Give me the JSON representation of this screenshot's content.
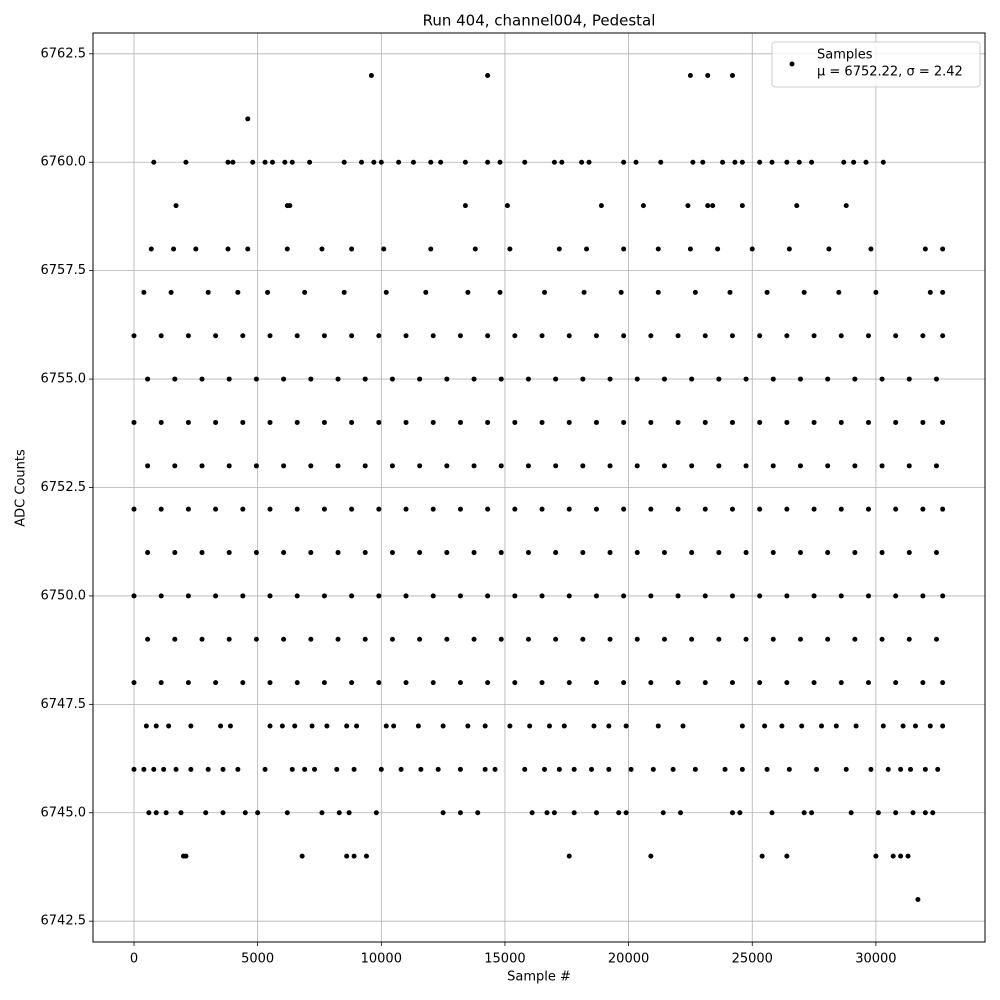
{
  "chart_data": {
    "type": "scatter",
    "title": "Run 404, channel004, Pedestal",
    "x_label": "Sample #",
    "y_label": "ADC Counts",
    "grid": true,
    "legend": "upper right",
    "legend_note": "μ = 6752.22, σ = 2.42",
    "xlim": [
      -1658,
      34412
    ],
    "ylim": [
      6742.02,
      6762.98
    ],
    "xticks": [
      0,
      5000,
      10000,
      15000,
      20000,
      25000,
      30000
    ],
    "yticks": [
      6742.5,
      {
        "value": 6745,
        "label": "6745.0"
      },
      6747.5,
      {
        "value": 6750,
        "label": "6750.0"
      },
      6752.5,
      {
        "value": 6755,
        "label": "6755.0"
      },
      6757.5,
      {
        "value": 6760,
        "label": "6760.0"
      },
      6762.5
    ],
    "series": [
      {
        "name": "Samples",
        "color": "#000000",
        "x": [
          31700,
          2000,
          2100,
          6800,
          8600,
          8900,
          9400,
          17600,
          20900,
          25400,
          26400,
          30000,
          30700,
          31000,
          31300,
          600,
          900,
          1300,
          1900,
          2900,
          3600,
          4500,
          5000,
          6200,
          7600,
          8300,
          8700,
          9800,
          12500,
          13200,
          13900,
          16100,
          16700,
          17000,
          17800,
          18700,
          19600,
          19900,
          21400,
          22100,
          24200,
          24500,
          25800,
          27100,
          27400,
          29000,
          30100,
          30800,
          31500,
          32000,
          32300,
          0,
          400,
          800,
          1200,
          1700,
          2300,
          3000,
          3600,
          4200,
          5300,
          6400,
          6900,
          7300,
          8200,
          8900,
          10000,
          10800,
          11600,
          12300,
          13200,
          14200,
          14600,
          15800,
          16600,
          17200,
          17800,
          18500,
          19200,
          20100,
          21000,
          21800,
          22700,
          23900,
          24600,
          25600,
          26500,
          27600,
          28800,
          29800,
          30500,
          31000,
          31400,
          32000,
          32500,
          500,
          900,
          1400,
          2300,
          3500,
          3900,
          5500,
          6000,
          6500,
          7200,
          7800,
          8600,
          9000,
          10200,
          10500,
          11500,
          12500,
          13500,
          14200,
          15200,
          16000,
          16800,
          17400,
          18600,
          19200,
          19900,
          21200,
          22200,
          24600,
          25500,
          26200,
          27000,
          27800,
          28400,
          29200,
          30300,
          31100,
          31600,
          32200,
          32700,
          0,
          1100,
          2200,
          3300,
          4400,
          5500,
          6600,
          7700,
          8800,
          9900,
          11000,
          12100,
          13200,
          14300,
          15400,
          16500,
          17600,
          18700,
          19800,
          20900,
          22000,
          23100,
          24200,
          25300,
          26400,
          27500,
          28600,
          29700,
          30800,
          31900,
          32700,
          550,
          1650,
          2750,
          3850,
          4950,
          6050,
          7150,
          8250,
          9350,
          10450,
          11550,
          12650,
          13750,
          14850,
          15950,
          17050,
          18150,
          19250,
          20350,
          21450,
          22550,
          23650,
          24750,
          25850,
          26950,
          28050,
          29150,
          30250,
          31350,
          32450,
          0,
          1100,
          2200,
          3300,
          4400,
          5500,
          6600,
          7700,
          8800,
          9900,
          11000,
          12100,
          13200,
          14300,
          15400,
          16500,
          17600,
          18700,
          19800,
          20900,
          22000,
          23100,
          24200,
          25300,
          26400,
          27500,
          28600,
          29700,
          30800,
          31900,
          32700,
          550,
          1650,
          2750,
          3850,
          4950,
          6050,
          7150,
          8250,
          9350,
          10450,
          11550,
          12650,
          13750,
          14850,
          15950,
          17050,
          18150,
          19250,
          20350,
          21450,
          22550,
          23650,
          24750,
          25850,
          26950,
          28050,
          29150,
          30250,
          31350,
          32450,
          0,
          1100,
          2200,
          3300,
          4400,
          5500,
          6600,
          7700,
          8800,
          9900,
          11000,
          12100,
          13200,
          14300,
          15400,
          16500,
          17600,
          18700,
          19800,
          20900,
          22000,
          23100,
          24200,
          25300,
          26400,
          27500,
          28600,
          29700,
          30800,
          31900,
          32700,
          550,
          1650,
          2750,
          3850,
          4950,
          6050,
          7150,
          8250,
          9350,
          10450,
          11550,
          12650,
          13750,
          14850,
          15950,
          17050,
          18150,
          19250,
          20350,
          21450,
          22550,
          23650,
          24750,
          25850,
          26950,
          28050,
          29150,
          30250,
          31350,
          32450,
          0,
          1100,
          2200,
          3300,
          4400,
          5500,
          6600,
          7700,
          8800,
          9900,
          11000,
          12100,
          13200,
          14300,
          15400,
          16500,
          17600,
          18700,
          19800,
          20900,
          22000,
          23100,
          24200,
          25300,
          26400,
          27500,
          28600,
          29700,
          30800,
          31900,
          32700,
          550,
          1650,
          2750,
          3850,
          4950,
          6050,
          7150,
          8250,
          9350,
          10450,
          11550,
          12650,
          13750,
          14850,
          15950,
          17050,
          18150,
          19250,
          20350,
          21450,
          22550,
          23650,
          24750,
          25850,
          26950,
          28050,
          29150,
          30250,
          31350,
          32450,
          0,
          1100,
          2200,
          3300,
          4400,
          5500,
          6600,
          7700,
          8800,
          9900,
          11000,
          12100,
          13200,
          14300,
          15400,
          16500,
          17600,
          18700,
          19800,
          20900,
          22000,
          23100,
          24200,
          25300,
          26400,
          27500,
          28600,
          29700,
          30800,
          31900,
          32700,
          400,
          1500,
          3000,
          4200,
          5400,
          6900,
          8500,
          10200,
          11800,
          13500,
          14800,
          16600,
          18200,
          19700,
          21200,
          22700,
          24100,
          25600,
          27100,
          28500,
          30000,
          32200,
          32700,
          700,
          1600,
          2500,
          3800,
          4600,
          6200,
          7600,
          8800,
          10100,
          12000,
          13800,
          15200,
          17200,
          18300,
          19800,
          21200,
          22500,
          23600,
          25000,
          26500,
          28100,
          29800,
          32000,
          32700,
          1700,
          6200,
          6300,
          13400,
          15100,
          18900,
          20600,
          22400,
          23200,
          23400,
          24600,
          26800,
          28800,
          800,
          2100,
          3800,
          4000,
          4800,
          5300,
          5600,
          6100,
          6400,
          7100,
          8500,
          9200,
          9700,
          10000,
          10700,
          11300,
          12000,
          12400,
          13400,
          14300,
          14800,
          15800,
          17000,
          17300,
          18100,
          18400,
          19800,
          20300,
          21300,
          22600,
          23000,
          23800,
          24300,
          24600,
          25300,
          25800,
          26400,
          26900,
          27400,
          28700,
          29100,
          29600,
          30300,
          4600,
          9600,
          14300,
          22500,
          23200,
          24200
        ],
        "values": [
          6743,
          6744,
          6744,
          6744,
          6744,
          6744,
          6744,
          6744,
          6744,
          6744,
          6744,
          6744,
          6744,
          6744,
          6744,
          6745,
          6745,
          6745,
          6745,
          6745,
          6745,
          6745,
          6745,
          6745,
          6745,
          6745,
          6745,
          6745,
          6745,
          6745,
          6745,
          6745,
          6745,
          6745,
          6745,
          6745,
          6745,
          6745,
          6745,
          6745,
          6745,
          6745,
          6745,
          6745,
          6745,
          6745,
          6745,
          6745,
          6745,
          6745,
          6745,
          6746,
          6746,
          6746,
          6746,
          6746,
          6746,
          6746,
          6746,
          6746,
          6746,
          6746,
          6746,
          6746,
          6746,
          6746,
          6746,
          6746,
          6746,
          6746,
          6746,
          6746,
          6746,
          6746,
          6746,
          6746,
          6746,
          6746,
          6746,
          6746,
          6746,
          6746,
          6746,
          6746,
          6746,
          6746,
          6746,
          6746,
          6746,
          6746,
          6746,
          6746,
          6746,
          6746,
          6746,
          6747,
          6747,
          6747,
          6747,
          6747,
          6747,
          6747,
          6747,
          6747,
          6747,
          6747,
          6747,
          6747,
          6747,
          6747,
          6747,
          6747,
          6747,
          6747,
          6747,
          6747,
          6747,
          6747,
          6747,
          6747,
          6747,
          6747,
          6747,
          6747,
          6747,
          6747,
          6747,
          6747,
          6747,
          6747,
          6747,
          6747,
          6747,
          6747,
          6747,
          6748,
          6748,
          6748,
          6748,
          6748,
          6748,
          6748,
          6748,
          6748,
          6748,
          6748,
          6748,
          6748,
          6748,
          6748,
          6748,
          6748,
          6748,
          6748,
          6748,
          6748,
          6748,
          6748,
          6748,
          6748,
          6748,
          6748,
          6748,
          6748,
          6748,
          6748,
          6749,
          6749,
          6749,
          6749,
          6749,
          6749,
          6749,
          6749,
          6749,
          6749,
          6749,
          6749,
          6749,
          6749,
          6749,
          6749,
          6749,
          6749,
          6749,
          6749,
          6749,
          6749,
          6749,
          6749,
          6749,
          6749,
          6749,
          6749,
          6749,
          6749,
          6750,
          6750,
          6750,
          6750,
          6750,
          6750,
          6750,
          6750,
          6750,
          6750,
          6750,
          6750,
          6750,
          6750,
          6750,
          6750,
          6750,
          6750,
          6750,
          6750,
          6750,
          6750,
          6750,
          6750,
          6750,
          6750,
          6750,
          6750,
          6750,
          6750,
          6750,
          6751,
          6751,
          6751,
          6751,
          6751,
          6751,
          6751,
          6751,
          6751,
          6751,
          6751,
          6751,
          6751,
          6751,
          6751,
          6751,
          6751,
          6751,
          6751,
          6751,
          6751,
          6751,
          6751,
          6751,
          6751,
          6751,
          6751,
          6751,
          6751,
          6751,
          6752,
          6752,
          6752,
          6752,
          6752,
          6752,
          6752,
          6752,
          6752,
          6752,
          6752,
          6752,
          6752,
          6752,
          6752,
          6752,
          6752,
          6752,
          6752,
          6752,
          6752,
          6752,
          6752,
          6752,
          6752,
          6752,
          6752,
          6752,
          6752,
          6752,
          6752,
          6753,
          6753,
          6753,
          6753,
          6753,
          6753,
          6753,
          6753,
          6753,
          6753,
          6753,
          6753,
          6753,
          6753,
          6753,
          6753,
          6753,
          6753,
          6753,
          6753,
          6753,
          6753,
          6753,
          6753,
          6753,
          6753,
          6753,
          6753,
          6753,
          6753,
          6754,
          6754,
          6754,
          6754,
          6754,
          6754,
          6754,
          6754,
          6754,
          6754,
          6754,
          6754,
          6754,
          6754,
          6754,
          6754,
          6754,
          6754,
          6754,
          6754,
          6754,
          6754,
          6754,
          6754,
          6754,
          6754,
          6754,
          6754,
          6754,
          6754,
          6754,
          6755,
          6755,
          6755,
          6755,
          6755,
          6755,
          6755,
          6755,
          6755,
          6755,
          6755,
          6755,
          6755,
          6755,
          6755,
          6755,
          6755,
          6755,
          6755,
          6755,
          6755,
          6755,
          6755,
          6755,
          6755,
          6755,
          6755,
          6755,
          6755,
          6755,
          6756,
          6756,
          6756,
          6756,
          6756,
          6756,
          6756,
          6756,
          6756,
          6756,
          6756,
          6756,
          6756,
          6756,
          6756,
          6756,
          6756,
          6756,
          6756,
          6756,
          6756,
          6756,
          6756,
          6756,
          6756,
          6756,
          6756,
          6756,
          6756,
          6756,
          6756,
          6757,
          6757,
          6757,
          6757,
          6757,
          6757,
          6757,
          6757,
          6757,
          6757,
          6757,
          6757,
          6757,
          6757,
          6757,
          6757,
          6757,
          6757,
          6757,
          6757,
          6757,
          6757,
          6757,
          6758,
          6758,
          6758,
          6758,
          6758,
          6758,
          6758,
          6758,
          6758,
          6758,
          6758,
          6758,
          6758,
          6758,
          6758,
          6758,
          6758,
          6758,
          6758,
          6758,
          6758,
          6758,
          6758,
          6758,
          6759,
          6759,
          6759,
          6759,
          6759,
          6759,
          6759,
          6759,
          6759,
          6759,
          6759,
          6759,
          6759,
          6760,
          6760,
          6760,
          6760,
          6760,
          6760,
          6760,
          6760,
          6760,
          6760,
          6760,
          6760,
          6760,
          6760,
          6760,
          6760,
          6760,
          6760,
          6760,
          6760,
          6760,
          6760,
          6760,
          6760,
          6760,
          6760,
          6760,
          6760,
          6760,
          6760,
          6760,
          6760,
          6760,
          6760,
          6760,
          6760,
          6760,
          6760,
          6760,
          6760,
          6760,
          6760,
          6760,
          6761,
          6762,
          6762,
          6762,
          6762,
          6762
        ]
      }
    ]
  }
}
